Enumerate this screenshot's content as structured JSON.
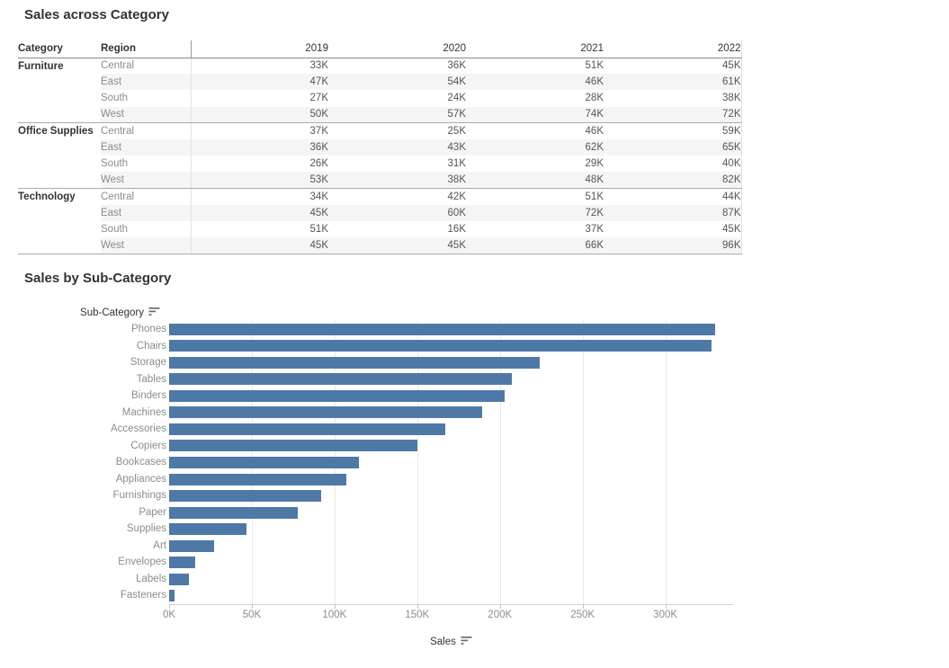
{
  "colors": {
    "bar": "#4e79a7",
    "row_band": "#f5f5f5",
    "label_gray": "#8c8c8c",
    "text_dark": "#333333"
  },
  "chart_data": [
    {
      "type": "table",
      "title": "Sales across Category",
      "columns": [
        "Category",
        "Region",
        "2019",
        "2020",
        "2021",
        "2022"
      ],
      "groups": [
        {
          "category": "Furniture",
          "rows": [
            {
              "region": "Central",
              "values": [
                "33K",
                "36K",
                "51K",
                "45K"
              ],
              "banded": false
            },
            {
              "region": "East",
              "values": [
                "47K",
                "54K",
                "46K",
                "61K"
              ],
              "banded": true
            },
            {
              "region": "South",
              "values": [
                "27K",
                "24K",
                "28K",
                "38K"
              ],
              "banded": false
            },
            {
              "region": "West",
              "values": [
                "50K",
                "57K",
                "74K",
                "72K"
              ],
              "banded": true
            }
          ]
        },
        {
          "category": "Office Supplies",
          "rows": [
            {
              "region": "Central",
              "values": [
                "37K",
                "25K",
                "46K",
                "59K"
              ],
              "banded": false
            },
            {
              "region": "East",
              "values": [
                "36K",
                "43K",
                "62K",
                "65K"
              ],
              "banded": true
            },
            {
              "region": "South",
              "values": [
                "26K",
                "31K",
                "29K",
                "40K"
              ],
              "banded": false
            },
            {
              "region": "West",
              "values": [
                "53K",
                "38K",
                "48K",
                "82K"
              ],
              "banded": true
            }
          ]
        },
        {
          "category": "Technology",
          "rows": [
            {
              "region": "Central",
              "values": [
                "34K",
                "42K",
                "51K",
                "44K"
              ],
              "banded": false
            },
            {
              "region": "East",
              "values": [
                "45K",
                "60K",
                "72K",
                "87K"
              ],
              "banded": true
            },
            {
              "region": "South",
              "values": [
                "51K",
                "16K",
                "37K",
                "45K"
              ],
              "banded": false
            },
            {
              "region": "West",
              "values": [
                "45K",
                "45K",
                "66K",
                "96K"
              ],
              "banded": true
            }
          ]
        }
      ]
    },
    {
      "type": "bar",
      "title": "Sales by Sub-Category",
      "orientation": "horizontal",
      "row_header": "Sub-Category",
      "xlabel": "Sales",
      "sorted": "descending",
      "categories": [
        "Phones",
        "Chairs",
        "Storage",
        "Tables",
        "Binders",
        "Machines",
        "Accessories",
        "Copiers",
        "Bookcases",
        "Appliances",
        "Furnishings",
        "Paper",
        "Supplies",
        "Art",
        "Envelopes",
        "Labels",
        "Fasteners"
      ],
      "values": [
        330,
        328,
        224,
        207,
        203,
        189,
        167,
        150,
        115,
        107,
        92,
        78,
        47,
        27,
        16,
        12,
        3
      ],
      "unit": "K",
      "x_ticks": [
        "0K",
        "50K",
        "100K",
        "150K",
        "200K",
        "250K",
        "300K"
      ],
      "x_tick_values": [
        0,
        50,
        100,
        150,
        200,
        250,
        300
      ],
      "xlim": [
        0,
        341
      ],
      "grid": true,
      "legend": "none",
      "bar_color": "#4e79a7"
    }
  ]
}
